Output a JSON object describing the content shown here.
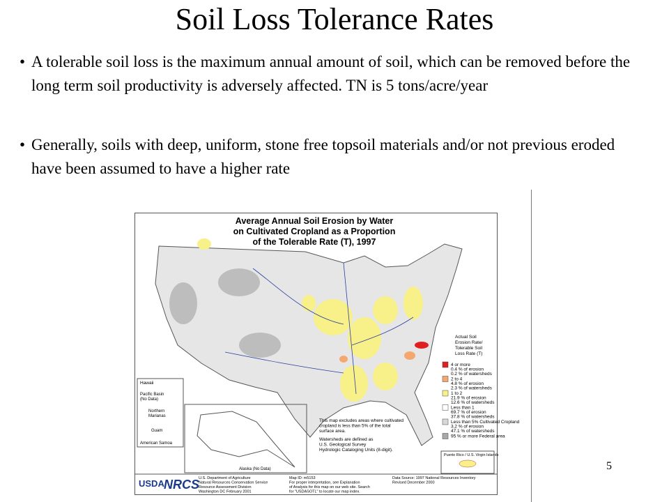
{
  "slide": {
    "title": "Soil Loss Tolerance Rates",
    "bullets": [
      "A tolerable soil loss is the maximum annual amount of soil, which can be removed before the long term soil productivity is adversely affected. TN is 5 tons/acre/year",
      "Generally, soils with deep, uniform, stone free topsoil materials and/or not previous eroded have been assumed to have a higher rate"
    ],
    "page_number": "5"
  },
  "map": {
    "title_lines": [
      "Average Annual Soil Erosion by Water",
      "on Cultivated Cropland as a Proportion",
      "of the Tolerable Rate (T), 1997"
    ],
    "legend_title": [
      "Actual Soil",
      "Erosion Rate/",
      "Tolerable Soil",
      "Loss Rate (T)"
    ],
    "legend": [
      {
        "label": "4 or more",
        "erosion": "0.4 % of erosion",
        "watersheds": "0.2 % of watersheds",
        "color": "#e02020"
      },
      {
        "label": "2 to 4",
        "erosion": "4.8 % of erosion",
        "watersheds": "2.3 % of watersheds",
        "color": "#f4a870"
      },
      {
        "label": "1 to 2",
        "erosion": "21.9 % of erosion",
        "watersheds": "12.6 % of watersheds",
        "color": "#f8f088"
      },
      {
        "label": "Less than 1",
        "erosion": "69.7 % of erosion",
        "watersheds": "37.8 % of watersheds",
        "color": "#ffffff"
      },
      {
        "label": "Less than 5% Cultivated Cropland",
        "erosion": "3.2 % of erosion",
        "watersheds": "47.1 % of watersheds",
        "color": "#d8d8d8"
      },
      {
        "label": "95 % or more Federal area",
        "erosion": null,
        "watersheds": null,
        "color": "#a8a8a8"
      }
    ],
    "notes": [
      [
        "This map excludes areas where cultivated",
        "cropland is less than 5% of the total",
        "surface area."
      ],
      [
        "Watersheds are defined as",
        "U.S. Geological Survey",
        "Hydrologic Cataloging Units (8-digit)."
      ]
    ],
    "insets": {
      "hawaii": "Hawaii",
      "pacific": [
        "Pacific Basin",
        "(No Data)"
      ],
      "mariana": [
        "Northern",
        "Marianas"
      ],
      "guam": "Guam",
      "samoa": "American Samoa",
      "alaska": "Alaska (No Data)",
      "puerto_rico": "Puerto Rico / U.S. Virgin Islands"
    },
    "footer": {
      "logo_usda": "USDA",
      "logo_nrcs": "NRCS",
      "agency": [
        "U.S. Department of Agriculture",
        "Natural Resources Conservation Service",
        "Resource Assessment Division",
        "Washington DC    February 2001"
      ],
      "map_id": [
        "Map ID: m5153",
        "For proper interpretation, see Explanation",
        "of Analysis for this map on our web site. Search",
        "for \"USDASOTL\" to locate our map index."
      ],
      "source": [
        "Data Source: 1997 National Resources Inventory",
        "Revised December 2000"
      ]
    }
  }
}
